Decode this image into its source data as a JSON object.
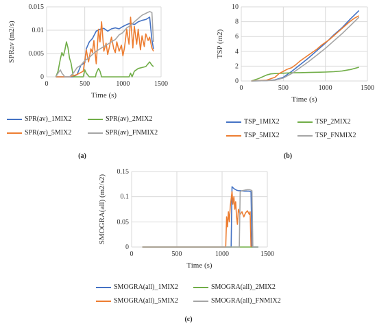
{
  "chart_data": [
    {
      "id": "a",
      "type": "line",
      "caption": "(a)",
      "xlabel": "Time (s)",
      "ylabel": "SPRav (m2/s)",
      "xlim": [
        0,
        1500
      ],
      "ylim": [
        0,
        0.015
      ],
      "xticks": [
        "0",
        "500",
        "1000",
        "1500"
      ],
      "yticks": [
        "0",
        "0.005",
        "0.01",
        "0.015"
      ],
      "grid": true,
      "legend_position": "bottom",
      "series": [
        {
          "name": "SPR(av)_1MIX2",
          "color": "#4472C4",
          "x": [
            120,
            200,
            300,
            350,
            400,
            450,
            500,
            520,
            560,
            600,
            650,
            700,
            750,
            800,
            850,
            900,
            950,
            1000,
            1050,
            1100,
            1150,
            1200,
            1250,
            1300,
            1350,
            1380,
            1400
          ],
          "y": [
            0,
            0,
            0,
            0,
            0.0005,
            0.0025,
            0.003,
            0.006,
            0.0075,
            0.0082,
            0.0098,
            0.0102,
            0.0104,
            0.0098,
            0.0103,
            0.0105,
            0.0103,
            0.0108,
            0.0112,
            0.0115,
            0.0112,
            0.0118,
            0.0121,
            0.0123,
            0.0128,
            0.008,
            0.006
          ]
        },
        {
          "name": "SPR(av)_2MIX2",
          "color": "#70AD47",
          "x": [
            120,
            150,
            180,
            200,
            220,
            240,
            260,
            280,
            300,
            320,
            350,
            400,
            480,
            500,
            520,
            560,
            600,
            640,
            650,
            680,
            700,
            720,
            1080,
            1100,
            1120,
            1150,
            1200,
            1300,
            1350,
            1380,
            1400
          ],
          "y": [
            0,
            0.0012,
            0.0038,
            0.0052,
            0.0045,
            0.0058,
            0.0075,
            0.0062,
            0.004,
            0.003,
            0,
            0,
            0,
            0.0015,
            0.0008,
            0,
            0,
            0,
            0.0008,
            0.0018,
            0.0012,
            0,
            0,
            0.0008,
            0,
            0.0012,
            0.0018,
            0.0022,
            0.0032,
            0.0025,
            0.0022
          ]
        },
        {
          "name": "SPR(av)_5MIX2",
          "color": "#ED7D31",
          "x": [
            120,
            200,
            300,
            400,
            480,
            500,
            520,
            550,
            580,
            600,
            620,
            650,
            680,
            700,
            720,
            750,
            780,
            800,
            820,
            850,
            880,
            900,
            920,
            950,
            980,
            1000,
            1020,
            1050,
            1080,
            1100,
            1130,
            1150,
            1180,
            1200,
            1230,
            1250,
            1280,
            1300,
            1330,
            1350,
            1380,
            1400
          ],
          "y": [
            0,
            0,
            0,
            0.0005,
            0.0012,
            0.0035,
            0.0058,
            0.0032,
            0.006,
            0.0052,
            0.0078,
            0.0028,
            0.0102,
            0.0075,
            0.0118,
            0.0055,
            0.0072,
            0.0048,
            0.0062,
            0.0085,
            0.006,
            0.0052,
            0.0075,
            0.0055,
            0.0068,
            0.0045,
            0.0062,
            0.0102,
            0.007,
            0.0128,
            0.0062,
            0.0108,
            0.007,
            0.0102,
            0.0058,
            0.0088,
            0.0065,
            0.0092,
            0.0078,
            0.0085,
            0.0062,
            0.0055
          ]
        },
        {
          "name": "SPR(av)_FNMIX2",
          "color": "#A5A5A5",
          "x": [
            120,
            150,
            180,
            200,
            240,
            300,
            350,
            400,
            450,
            500,
            550,
            600,
            650,
            700,
            750,
            800,
            850,
            900,
            950,
            1000,
            1050,
            1100,
            1150,
            1200,
            1250,
            1300,
            1350,
            1380,
            1400
          ],
          "y": [
            0,
            0.0008,
            0.0015,
            0.0008,
            0,
            0,
            0.0008,
            0.002,
            0.0025,
            0.0035,
            0.004,
            0.0048,
            0.0055,
            0.006,
            0.0065,
            0.007,
            0.0075,
            0.008,
            0.009,
            0.0095,
            0.0105,
            0.011,
            0.0118,
            0.0125,
            0.0132,
            0.0136,
            0.014,
            0.0138,
            0.0075
          ]
        }
      ]
    },
    {
      "id": "b",
      "type": "line",
      "caption": "(b)",
      "xlabel": "Time (s)",
      "ylabel": "TSP (m2)",
      "xlim": [
        0,
        1500
      ],
      "ylim": [
        0,
        10
      ],
      "xticks": [
        "0",
        "500",
        "1000",
        "1500"
      ],
      "yticks": [
        "0",
        "2",
        "4",
        "6",
        "8",
        "10"
      ],
      "grid": true,
      "legend_position": "bottom",
      "series": [
        {
          "name": "TSP_1MIX2",
          "color": "#4472C4",
          "x": [
            120,
            300,
            400,
            500,
            600,
            700,
            800,
            900,
            1000,
            1100,
            1200,
            1300,
            1400
          ],
          "y": [
            0,
            0.05,
            0.15,
            0.5,
            1.3,
            2.2,
            3.1,
            4.1,
            5.1,
            6.2,
            7.2,
            8.4,
            9.5
          ]
        },
        {
          "name": "TSP_2MIX2",
          "color": "#70AD47",
          "x": [
            120,
            200,
            300,
            350,
            400,
            500,
            600,
            700,
            800,
            900,
            1000,
            1100,
            1200,
            1300,
            1400
          ],
          "y": [
            0,
            0.3,
            0.8,
            0.95,
            1.0,
            1.05,
            1.1,
            1.12,
            1.15,
            1.18,
            1.2,
            1.25,
            1.35,
            1.55,
            1.85
          ]
        },
        {
          "name": "TSP_5MIX2",
          "color": "#ED7D31",
          "x": [
            120,
            300,
            400,
            450,
            500,
            550,
            600,
            650,
            700,
            750,
            800,
            850,
            900,
            950,
            1000,
            1050,
            1100,
            1150,
            1200,
            1250,
            1300,
            1350,
            1400
          ],
          "y": [
            0,
            0.1,
            0.5,
            1.0,
            1.3,
            1.6,
            1.8,
            2.2,
            2.7,
            3.1,
            3.5,
            3.9,
            4.3,
            4.8,
            5.2,
            5.6,
            6.1,
            6.6,
            7.1,
            7.6,
            8.1,
            8.5,
            8.8
          ]
        },
        {
          "name": "TSP_FNMIX2",
          "color": "#A5A5A5",
          "x": [
            120,
            300,
            400,
            500,
            600,
            700,
            800,
            900,
            1000,
            1100,
            1200,
            1300,
            1400
          ],
          "y": [
            0,
            0.05,
            0.1,
            0.4,
            1.0,
            1.8,
            2.6,
            3.5,
            4.4,
            5.4,
            6.4,
            7.5,
            8.6
          ]
        }
      ]
    },
    {
      "id": "c",
      "type": "line",
      "caption": "(c)",
      "xlabel": "Time (s)",
      "ylabel": "SMOGRA(all) (m2/s2)",
      "xlim": [
        0,
        1500
      ],
      "ylim": [
        0,
        0.15
      ],
      "xticks": [
        "0",
        "500",
        "1000",
        "1500"
      ],
      "yticks": [
        "0",
        "0.05",
        "0.1",
        "0.15"
      ],
      "grid": true,
      "legend_position": "bottom",
      "series": [
        {
          "name": "SMOGRA(all)_1MIX2",
          "color": "#4472C4",
          "x": [
            120,
            1100,
            1110,
            1120,
            1140,
            1160,
            1180,
            1200,
            1250,
            1300,
            1320,
            1330,
            1340,
            1400
          ],
          "y": [
            0,
            0,
            0.12,
            0.118,
            0.115,
            0.113,
            0.112,
            0.112,
            0.111,
            0.111,
            0.11,
            0,
            0,
            0
          ]
        },
        {
          "name": "SMOGRA(all)_2MIX2",
          "color": "#70AD47",
          "x": [
            120,
            1400
          ],
          "y": [
            0,
            0
          ]
        },
        {
          "name": "SMOGRA(all)_5MIX2",
          "color": "#ED7D31",
          "x": [
            120,
            1040,
            1050,
            1060,
            1070,
            1080,
            1090,
            1100,
            1110,
            1120,
            1130,
            1140,
            1150,
            1160,
            1170,
            1180,
            1200,
            1220,
            1240,
            1260,
            1280,
            1300,
            1310,
            1320
          ],
          "y": [
            0,
            0,
            0.06,
            0.04,
            0.07,
            0.05,
            0.08,
            0.095,
            0.11,
            0.085,
            0.1,
            0.075,
            0.09,
            0.06,
            0.045,
            0.075,
            0.065,
            0.07,
            0.06,
            0.068,
            0.072,
            0.065,
            0.07,
            0
          ]
        },
        {
          "name": "SMOGRA(all)_FNMIX2",
          "color": "#A5A5A5",
          "x": [
            120,
            1190,
            1200,
            1220,
            1250,
            1280,
            1300,
            1320,
            1330,
            1340,
            1400
          ],
          "y": [
            0,
            0,
            0.11,
            0.112,
            0.113,
            0.114,
            0.114,
            0.113,
            0.112,
            0,
            0
          ]
        }
      ]
    }
  ]
}
